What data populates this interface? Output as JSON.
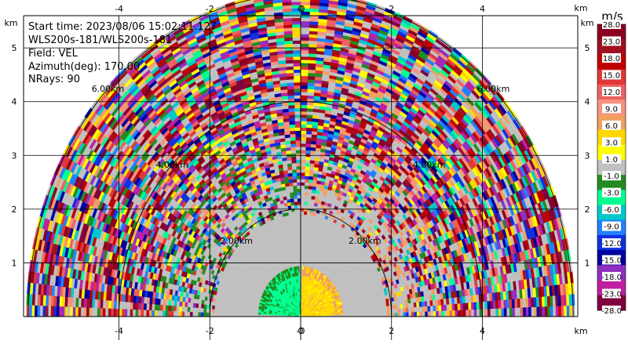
{
  "info": {
    "start_time": "Start time: 2023/08/06 15:02:11.127",
    "instrument": "WLS200s-181/WLS200s-181",
    "field": "Field: VEL",
    "azimuth": "Azimuth(deg): 170.00",
    "nrays": "NRays: 90"
  },
  "chart_data": {
    "type": "heatmap",
    "title": "",
    "xlabel": "km",
    "ylabel": "km",
    "xlim": [
      -6.1,
      6.1
    ],
    "ylim": [
      0,
      5.6
    ],
    "xticks": [
      -4,
      -2,
      0,
      2,
      4
    ],
    "yticks": [
      1,
      2,
      3,
      4,
      5
    ],
    "range_rings_km": [
      2,
      4,
      6
    ],
    "range_ring_labels": [
      "2.00km",
      "4.00km",
      "6.00km"
    ],
    "max_range_km": 6.0,
    "grid": true,
    "colorbar": {
      "unit": "m/s",
      "ticks": [
        "28.0",
        "23.0",
        "18.0",
        "15.0",
        "12.0",
        "9.0",
        "6.0",
        "3.0",
        "1.0",
        "-1.0",
        "-3.0",
        "-6.0",
        "-9.0",
        "-12.0",
        "-15.0",
        "-18.0",
        "-23.0",
        "-28.0"
      ],
      "colors": [
        "#8b0020",
        "#a01020",
        "#c00000",
        "#e03838",
        "#f06060",
        "#f89080",
        "#f0a060",
        "#ffd700",
        "#ffff00",
        "#c0c0c0",
        "#228b22",
        "#00ff90",
        "#00c8c8",
        "#2080ff",
        "#1030e0",
        "#0000a0",
        "#9030c0",
        "#c020a0",
        "#800040"
      ]
    }
  }
}
